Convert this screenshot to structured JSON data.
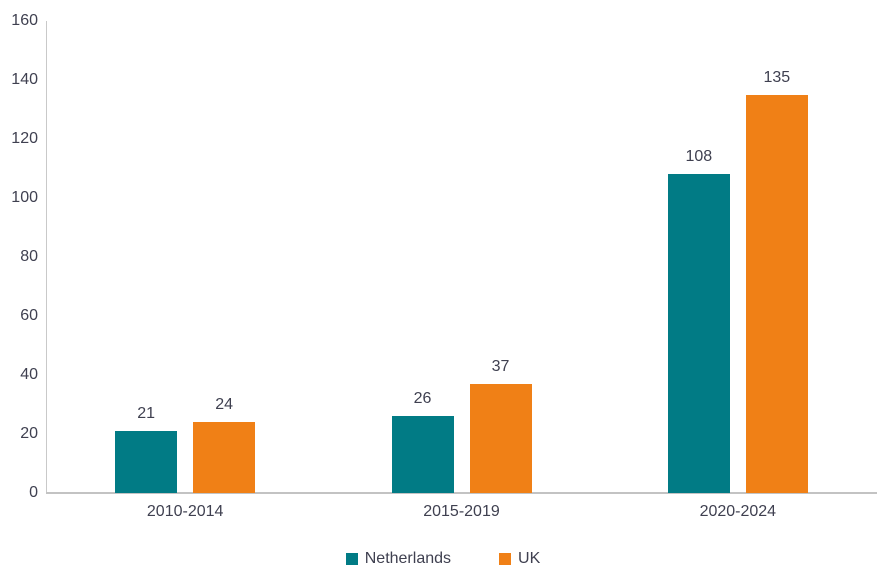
{
  "chart_data": {
    "type": "bar",
    "title": "",
    "categories": [
      "2010-2014",
      "2015-2019",
      "2020-2024"
    ],
    "series": [
      {
        "name": "Netherlands",
        "color": "#017B85",
        "values": [
          21,
          26,
          108
        ]
      },
      {
        "name": "UK",
        "color": "#F08016",
        "values": [
          24,
          37,
          135
        ]
      }
    ],
    "ylim": [
      0,
      160
    ],
    "yticks": [
      0,
      20,
      40,
      60,
      80,
      100,
      120,
      140,
      160
    ],
    "xlabel": "",
    "ylabel": "",
    "grid": false,
    "data_labels": true,
    "legend_position": "bottom"
  },
  "colors": {
    "background": "#FFFFFF",
    "axis_line": "#C9C9C9",
    "text": "#3F4050",
    "netherlands": "#017B85",
    "uk": "#F08016"
  }
}
